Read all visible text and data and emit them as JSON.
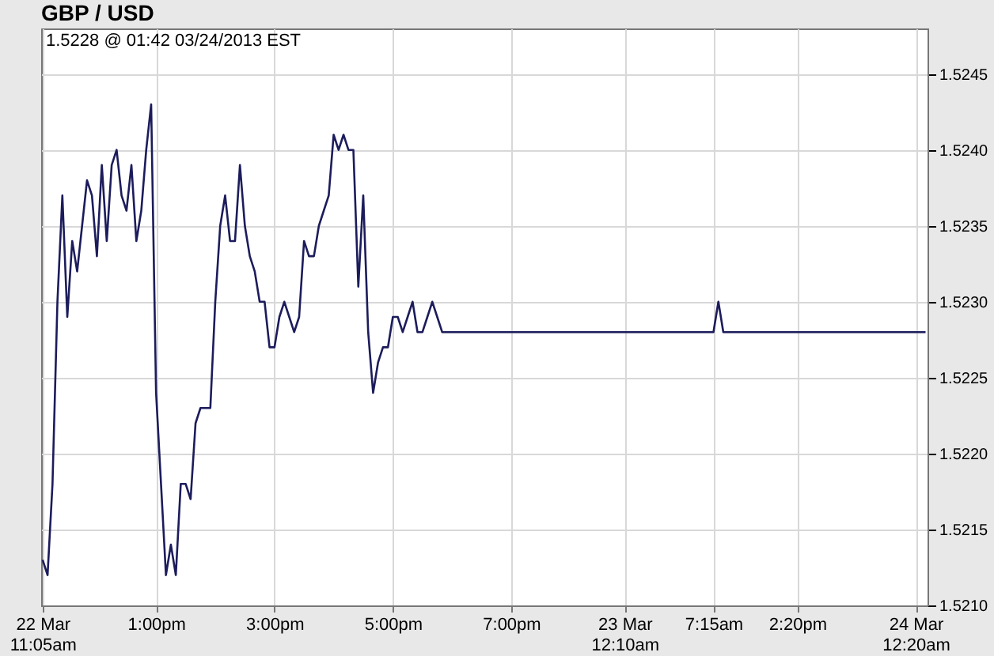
{
  "chart_data": {
    "type": "line",
    "title": "GBP / USD",
    "annotations": [
      "1.5228 @ 01:42  03/24/2013 EST"
    ],
    "categories": [
      "22 Mar\n11:05am",
      null,
      null,
      null,
      null,
      null,
      null,
      null,
      null,
      null,
      null,
      null,
      null,
      null,
      null,
      null,
      null,
      null,
      null,
      null,
      null,
      null,
      null,
      "1:00pm",
      null,
      null,
      null,
      null,
      null,
      null,
      null,
      null,
      null,
      null,
      null,
      null,
      null,
      null,
      null,
      null,
      null,
      null,
      null,
      null,
      null,
      null,
      null,
      "3:00pm",
      null,
      null,
      null,
      null,
      null,
      null,
      null,
      null,
      null,
      null,
      null,
      null,
      null,
      null,
      null,
      null,
      null,
      null,
      null,
      null,
      null,
      null,
      null,
      "5:00pm",
      null,
      null,
      null,
      null,
      null,
      null,
      null,
      null,
      null,
      null,
      null,
      null,
      null,
      null,
      null,
      null,
      null,
      null,
      null,
      null,
      null,
      null,
      null,
      "7:00pm",
      null,
      null,
      null,
      null,
      null,
      null,
      null,
      null,
      null,
      null,
      null,
      null,
      null,
      null,
      null,
      null,
      null,
      null,
      null,
      null,
      null,
      null,
      "23 Mar\n12:10am",
      null,
      null,
      null,
      null,
      null,
      null,
      null,
      null,
      null,
      null,
      null,
      null,
      null,
      null,
      null,
      null,
      null,
      "7:15am",
      null,
      null,
      null,
      null,
      null,
      null,
      null,
      null,
      null,
      null,
      null,
      null,
      null,
      null,
      null,
      null,
      "2:20pm",
      null,
      null,
      null,
      null,
      null,
      null,
      null,
      null,
      null,
      null,
      null,
      null,
      null,
      null,
      null,
      null,
      null,
      null,
      null,
      null,
      null,
      null,
      null,
      "24 Mar\n12:20am",
      null,
      null
    ],
    "series": [
      {
        "color": "#1c1c5c",
        "values": [
          1.5213,
          1.5212,
          1.5218,
          1.523,
          1.5237,
          1.5229,
          1.5234,
          1.5232,
          1.5235,
          1.5238,
          1.5237,
          1.5233,
          1.5239,
          1.5234,
          1.5239,
          1.524,
          1.5237,
          1.5236,
          1.5239,
          1.5234,
          1.5236,
          1.524,
          1.5243,
          1.5224,
          1.5218,
          1.5212,
          1.5214,
          1.5212,
          1.5218,
          1.5218,
          1.5217,
          1.5222,
          1.5223,
          1.5223,
          1.5223,
          1.523,
          1.5235,
          1.5237,
          1.5234,
          1.5234,
          1.5239,
          1.5235,
          1.5233,
          1.5232,
          1.523,
          1.523,
          1.5227,
          1.5227,
          1.5229,
          1.523,
          1.5229,
          1.5228,
          1.5229,
          1.5234,
          1.5233,
          1.5233,
          1.5235,
          1.5236,
          1.5237,
          1.5241,
          1.524,
          1.5241,
          1.524,
          1.524,
          1.5231,
          1.5237,
          1.5228,
          1.5224,
          1.5226,
          1.5227,
          1.5227,
          1.5229,
          1.5229,
          1.5228,
          1.5229,
          1.523,
          1.5228,
          1.5228,
          1.5229,
          1.523,
          1.5229,
          1.5228,
          1.5228,
          1.5228,
          1.5228,
          1.5228,
          1.5228,
          1.5228,
          1.5228,
          1.5228,
          1.5228,
          1.5228,
          1.5228,
          1.5228,
          1.5228,
          1.5228,
          1.5228,
          1.5228,
          1.5228,
          1.5228,
          1.5228,
          1.5228,
          1.5228,
          1.5228,
          1.5228,
          1.5228,
          1.5228,
          1.5228,
          1.5228,
          1.5228,
          1.5228,
          1.5228,
          1.5228,
          1.5228,
          1.5228,
          1.5228,
          1.5228,
          1.5228,
          1.5228,
          1.5228,
          1.5228,
          1.5228,
          1.5228,
          1.5228,
          1.5228,
          1.5228,
          1.5228,
          1.5228,
          1.5228,
          1.5228,
          1.5228,
          1.5228,
          1.5228,
          1.5228,
          1.5228,
          1.5228,
          1.5228,
          1.523,
          1.5228,
          1.5228,
          1.5228,
          1.5228,
          1.5228,
          1.5228,
          1.5228,
          1.5228,
          1.5228,
          1.5228,
          1.5228,
          1.5228,
          1.5228,
          1.5228,
          1.5228,
          1.5228,
          1.5228,
          1.5228,
          1.5228,
          1.5228,
          1.5228,
          1.5228,
          1.5228,
          1.5228,
          1.5228,
          1.5228,
          1.5228,
          1.5228,
          1.5228,
          1.5228,
          1.5228,
          1.5228,
          1.5228,
          1.5228,
          1.5228,
          1.5228,
          1.5228,
          1.5228,
          1.5228,
          1.5228,
          1.5228,
          1.5228
        ]
      }
    ],
    "ylim": [
      1.521,
      1.5248
    ],
    "yticks": [
      {
        "value": 1.521,
        "label": "1.5210"
      },
      1.5215,
      {
        "value": 1.522,
        "label": "1.5220"
      },
      1.5225,
      {
        "value": 1.523,
        "label": "1.5230"
      },
      1.5235,
      {
        "value": 1.524,
        "label": "1.5240"
      },
      1.5245
    ],
    "grid": true,
    "marker": "none",
    "line_style": "solid"
  }
}
